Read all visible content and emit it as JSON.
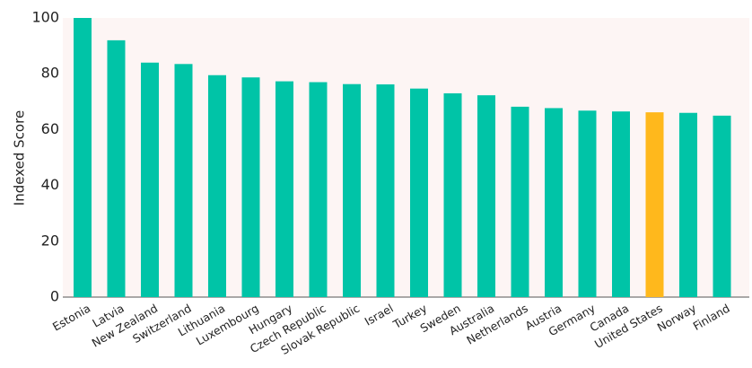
{
  "chart_data": {
    "type": "bar",
    "y_label": "Indexed Score",
    "categories": [
      "Estonia",
      "Latvia",
      "New Zealand",
      "Switzerland",
      "Lithuania",
      "Luxembourg",
      "Hungary",
      "Czech Republic",
      "Slovak Republic",
      "Israel",
      "Turkey",
      "Sweden",
      "Australia",
      "Netherlands",
      "Austria",
      "Germany",
      "Canada",
      "United States",
      "Norway",
      "Finland"
    ],
    "values": [
      100,
      92,
      84,
      83.5,
      79.5,
      78.7,
      77.3,
      77,
      76.3,
      76.2,
      74.7,
      73,
      72.3,
      68.2,
      67.7,
      66.8,
      66.5,
      66.2,
      66,
      65
    ],
    "colors": [
      "#00c4a7",
      "#00c4a7",
      "#00c4a7",
      "#00c4a7",
      "#00c4a7",
      "#00c4a7",
      "#00c4a7",
      "#00c4a7",
      "#00c4a7",
      "#00c4a7",
      "#00c4a7",
      "#00c4a7",
      "#00c4a7",
      "#00c4a7",
      "#00c4a7",
      "#00c4a7",
      "#00c4a7",
      "#ffb81c",
      "#00c4a7",
      "#00c4a7"
    ],
    "ylim": [
      0,
      100
    ],
    "yticks": [
      0,
      20,
      40,
      60,
      80,
      100
    ],
    "grid": false
  }
}
